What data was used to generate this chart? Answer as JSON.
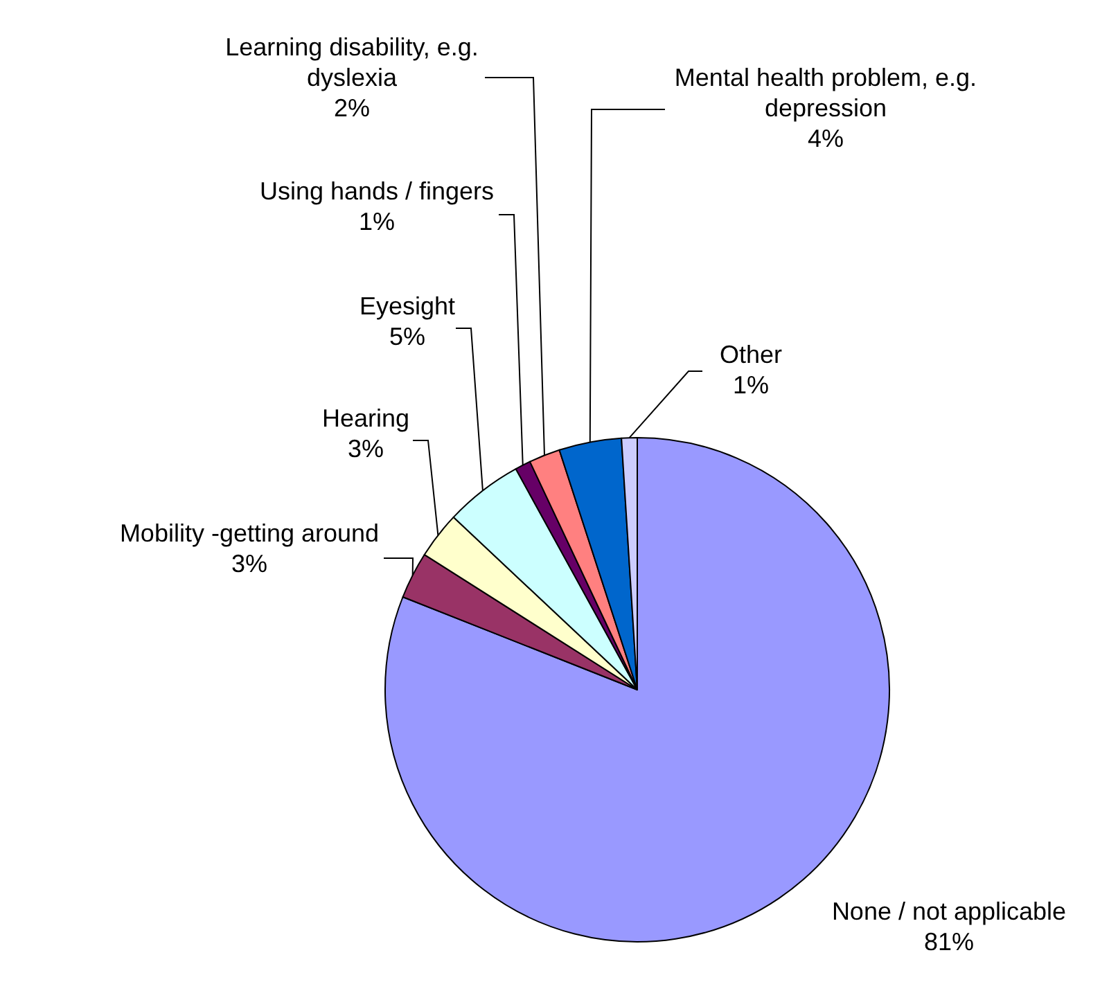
{
  "chart_data": {
    "type": "pie",
    "categories": [
      "None / not applicable",
      "Mobility -getting around",
      "Hearing",
      "Eyesight",
      "Using hands / fingers",
      "Learning disability, e.g. dyslexia",
      "Mental health problem, e.g. depression",
      "Other"
    ],
    "values": [
      81,
      3,
      3,
      5,
      1,
      2,
      4,
      1
    ],
    "colors": [
      "#9999ff",
      "#993366",
      "#ffffcc",
      "#ccffff",
      "#660066",
      "#ff8080",
      "#0066cc",
      "#ccccff"
    ],
    "value_labels": [
      "81%",
      "3%",
      "3%",
      "5%",
      "1%",
      "2%",
      "4%",
      "1%"
    ]
  }
}
